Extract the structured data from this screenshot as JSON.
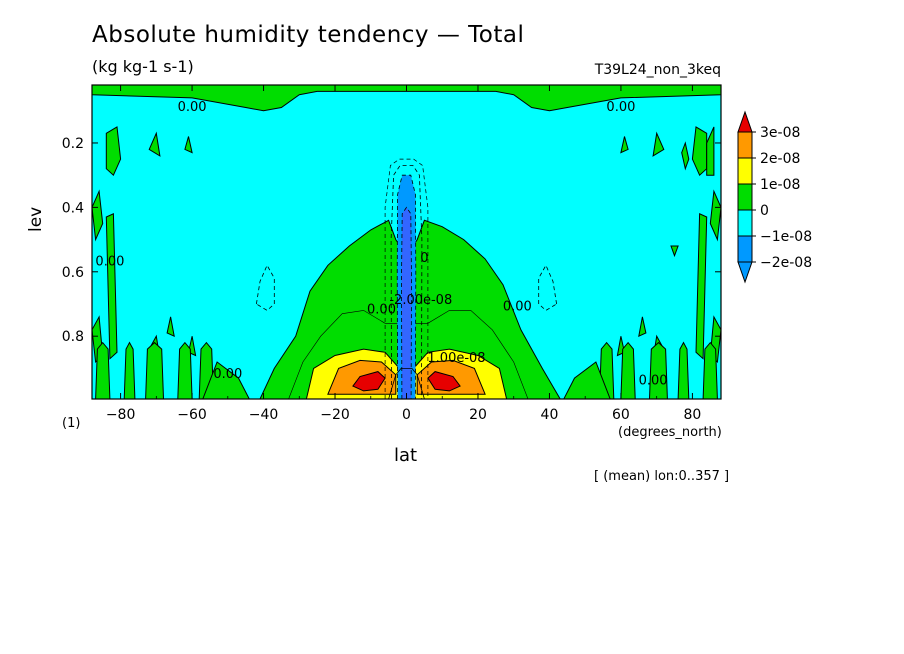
{
  "chart_data": {
    "type": "contour",
    "title": "Absolute humidity tendency — Total",
    "units": "(kg kg-1 s-1)",
    "experiment": "T39L24_non_3keq",
    "xlabel": "lat",
    "xunits": "(degrees_north)",
    "ylabel": "lev",
    "yunits": "(1)",
    "footnote": "[ (mean) lon:0..357 ]",
    "xlim": [
      -88,
      88
    ],
    "ylim": [
      0.995,
      0.02
    ],
    "y_reversed": true,
    "x_ticks": [
      -80,
      -60,
      -40,
      -20,
      0,
      20,
      40,
      60,
      80
    ],
    "x_tick_labels": [
      "−80",
      "−60",
      "−40",
      "−20",
      "0",
      "20",
      "40",
      "60",
      "80"
    ],
    "y_ticks": [
      0.2,
      0.4,
      0.6,
      0.8
    ],
    "y_tick_labels": [
      "0.2",
      "0.4",
      "0.6",
      "0.8"
    ],
    "levels": [
      {
        "label": "3e-08",
        "color": "#e60000"
      },
      {
        "label": "2e-08",
        "color": "#ff9900"
      },
      {
        "label": "1e-08",
        "color": "#ffff00"
      },
      {
        "label": "0",
        "color": "#00dd00"
      },
      {
        "label": "−1e-08",
        "color": "#00ffff"
      },
      {
        "label": "−2e-08",
        "color": "#0099ff"
      }
    ],
    "background_color": "#00ffff",
    "green_color": "#00dd00",
    "yellow_color": "#ffff00",
    "orange_color": "#ff9900",
    "red_color": "#e60000",
    "blue_color": "#0099ff",
    "darkblue_color": "#3366ff",
    "contour_labels": [
      {
        "text": "0.00",
        "lat": -60,
        "lev": 0.1
      },
      {
        "text": "0.00",
        "lat": 60,
        "lev": 0.1
      },
      {
        "text": "0.00",
        "lat": -83,
        "lev": 0.58
      },
      {
        "text": "0.00",
        "lat": -50,
        "lev": 0.93
      },
      {
        "text": "0.00",
        "lat": 31,
        "lev": 0.72
      },
      {
        "text": "0.00",
        "lat": 69,
        "lev": 0.95
      },
      {
        "text": "0.00",
        "lat": -7,
        "lev": 0.73
      },
      {
        "text": "-2.00e-08",
        "lat": 4,
        "lev": 0.7
      },
      {
        "text": "0",
        "lat": 5,
        "lev": 0.57
      },
      {
        "text": "1.00e-08",
        "lat": 14,
        "lev": 0.88
      }
    ]
  }
}
